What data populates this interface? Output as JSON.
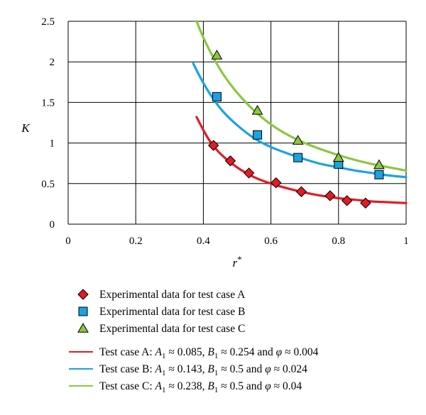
{
  "chart_data": {
    "type": "scatter",
    "title": "",
    "xlabel": "r*",
    "ylabel": "K",
    "xlim": [
      0,
      1
    ],
    "ylim": [
      0,
      2.5
    ],
    "xticks": [
      "0",
      "0.2",
      "0.4",
      "0.6",
      "0.8",
      "1"
    ],
    "yticks": [
      "0",
      "0.5",
      "1",
      "1.5",
      "2",
      "2.5"
    ],
    "grid": true,
    "legend_position": "bottom",
    "series": [
      {
        "name": "Experimental data for test case A",
        "kind": "markers",
        "marker": "diamond",
        "color": "#e31b23",
        "x": [
          0.43,
          0.48,
          0.535,
          0.615,
          0.69,
          0.775,
          0.825,
          0.88
        ],
        "y": [
          0.97,
          0.78,
          0.63,
          0.51,
          0.4,
          0.35,
          0.29,
          0.26
        ]
      },
      {
        "name": "Experimental data for test case B",
        "kind": "markers",
        "marker": "square",
        "color": "#1aa3e0",
        "x": [
          0.44,
          0.56,
          0.68,
          0.8,
          0.92
        ],
        "y": [
          1.57,
          1.1,
          0.82,
          0.74,
          0.61
        ]
      },
      {
        "name": "Experimental data for test case C",
        "kind": "markers",
        "marker": "triangle",
        "color": "#8cc63f",
        "x": [
          0.44,
          0.56,
          0.68,
          0.8,
          0.92
        ],
        "y": [
          2.08,
          1.4,
          1.03,
          0.82,
          0.73
        ]
      },
      {
        "name": "Test case A: A1 ≈ 0.085, B1 ≈ 0.254 and φ ≈ 0.004",
        "kind": "line",
        "color": "#e31b23",
        "A1": 0.085,
        "B1": 0.254,
        "phi": 0.004,
        "x": [
          0.38,
          0.4,
          0.42,
          0.45,
          0.5,
          0.55,
          0.6,
          0.65,
          0.7,
          0.75,
          0.8,
          0.85,
          0.9,
          0.95,
          1.0
        ],
        "y": [
          1.32,
          1.16,
          1.02,
          0.87,
          0.7,
          0.58,
          0.5,
          0.44,
          0.39,
          0.35,
          0.32,
          0.3,
          0.28,
          0.27,
          0.26
        ]
      },
      {
        "name": "Test case B: A1 ≈ 0.143, B1 ≈ 0.5 and φ ≈ 0.024",
        "kind": "line",
        "color": "#1aa3e0",
        "A1": 0.143,
        "B1": 0.5,
        "phi": 0.024,
        "x": [
          0.37,
          0.4,
          0.43,
          0.46,
          0.5,
          0.55,
          0.6,
          0.65,
          0.7,
          0.75,
          0.8,
          0.85,
          0.9,
          0.95,
          1.0
        ],
        "y": [
          1.98,
          1.74,
          1.54,
          1.38,
          1.22,
          1.06,
          0.95,
          0.87,
          0.8,
          0.74,
          0.7,
          0.66,
          0.63,
          0.6,
          0.58
        ]
      },
      {
        "name": "Test case C: A1 ≈ 0.238, B1 ≈ 0.5 and φ ≈ 0.04",
        "kind": "line",
        "color": "#8cc63f",
        "A1": 0.238,
        "B1": 0.5,
        "phi": 0.04,
        "x": [
          0.38,
          0.4,
          0.43,
          0.46,
          0.5,
          0.55,
          0.6,
          0.65,
          0.7,
          0.75,
          0.8,
          0.85,
          0.9,
          0.95,
          1.0
        ],
        "y": [
          2.5,
          2.3,
          2.05,
          1.84,
          1.62,
          1.4,
          1.23,
          1.1,
          1.0,
          0.92,
          0.85,
          0.79,
          0.74,
          0.7,
          0.66
        ]
      }
    ]
  },
  "legend": {
    "entries": [
      {
        "kind": "marker",
        "marker": "diamond",
        "color": "#e31b23",
        "text": "Experimental data for test case A"
      },
      {
        "kind": "marker",
        "marker": "square",
        "color": "#1aa3e0",
        "text": "Experimental data for test case B"
      },
      {
        "kind": "marker",
        "marker": "triangle",
        "color": "#8cc63f",
        "text": "Experimental data for test case C"
      },
      {
        "kind": "line",
        "color": "#e31b23",
        "label": "Test case A:",
        "A1": "0.085",
        "B1": "0.254",
        "phi": "0.004"
      },
      {
        "kind": "line",
        "color": "#1aa3e0",
        "label": "Test case B:",
        "A1": "0.143",
        "B1": "0.5",
        "phi": "0.024"
      },
      {
        "kind": "line",
        "color": "#8cc63f",
        "label": "Test case C:",
        "A1": "0.238",
        "B1": "0.5",
        "phi": "0.04"
      }
    ]
  }
}
